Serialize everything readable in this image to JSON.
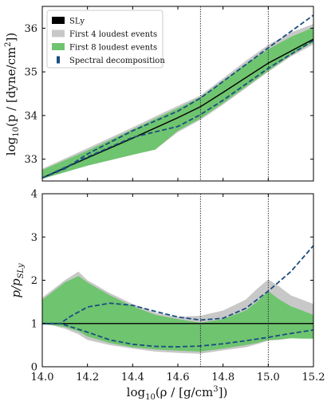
{
  "colors": {
    "sly": "#000000",
    "band4": "#c8c8c8",
    "band8": "#6fc46f",
    "spectral": "#1a4d80",
    "vline": "#222222"
  },
  "chart_data": [
    {
      "type": "area",
      "panel": "top",
      "ylabel": "log10(p / [dyne/cm²])",
      "ylabel_parts": {
        "prefix": "log",
        "sub": "10",
        "mid": "(p / [dyne/cm",
        "sup": "2",
        "suffix": "])"
      },
      "xlim": [
        14.0,
        15.2
      ],
      "ylim": [
        32.5,
        36.5
      ],
      "yticks": [
        33,
        34,
        35,
        36
      ],
      "ytick_labels": [
        "33",
        "34",
        "35",
        "36"
      ],
      "vlines": [
        14.7,
        15.0
      ],
      "legend": {
        "position": "top-left",
        "entries": [
          {
            "label": "SLy",
            "series": "sly"
          },
          {
            "label": "First 4 loudest events",
            "series": "band4"
          },
          {
            "label": "First 8 loudest events",
            "series": "band8"
          },
          {
            "label": "Spectral decomposition",
            "series": "spectral"
          }
        ]
      },
      "series": [
        {
          "key": "sly",
          "name": "SLy",
          "style": "line",
          "x": [
            14.0,
            14.2,
            14.4,
            14.6,
            14.7,
            14.8,
            15.0,
            15.2
          ],
          "y": [
            32.57,
            33.03,
            33.48,
            33.95,
            34.2,
            34.53,
            35.2,
            35.75
          ]
        },
        {
          "key": "band4",
          "name": "First 4 loudest events",
          "style": "band",
          "x": [
            14.0,
            14.2,
            14.4,
            14.5,
            14.6,
            14.7,
            14.8,
            14.9,
            15.0,
            15.1,
            15.2
          ],
          "upper": [
            32.78,
            33.25,
            33.73,
            33.98,
            34.22,
            34.46,
            34.85,
            35.25,
            35.62,
            35.9,
            36.1
          ],
          "lower": [
            32.55,
            32.85,
            33.1,
            33.22,
            33.62,
            33.9,
            34.25,
            34.62,
            35.0,
            35.35,
            35.63
          ]
        },
        {
          "key": "band8",
          "name": "First 8 loudest events",
          "style": "band",
          "x": [
            14.0,
            14.2,
            14.4,
            14.5,
            14.6,
            14.7,
            14.8,
            14.9,
            15.0,
            15.1,
            15.2
          ],
          "upper": [
            32.75,
            33.2,
            33.68,
            33.93,
            34.17,
            34.42,
            34.8,
            35.18,
            35.52,
            35.8,
            36.02
          ],
          "lower": [
            32.55,
            32.85,
            33.1,
            33.22,
            33.65,
            33.93,
            34.28,
            34.65,
            35.02,
            35.38,
            35.68
          ]
        },
        {
          "key": "spectral_upper",
          "name": "Spectral decomposition",
          "style": "dashed",
          "x": [
            14.0,
            14.1,
            14.2,
            14.4,
            14.6,
            14.7,
            14.8,
            15.0,
            15.2
          ],
          "y": [
            32.57,
            32.78,
            33.12,
            33.65,
            34.1,
            34.4,
            34.78,
            35.55,
            36.3
          ]
        },
        {
          "key": "spectral_lower",
          "name": "Spectral decomposition",
          "style": "dashed",
          "x": [
            14.0,
            14.2,
            14.4,
            14.6,
            14.7,
            14.8,
            15.0,
            15.2
          ],
          "y": [
            32.57,
            33.05,
            33.5,
            33.75,
            34.02,
            34.35,
            35.08,
            35.72
          ]
        }
      ]
    },
    {
      "type": "area",
      "panel": "bottom",
      "xlabel": "log10(ρ / [g/cm³])",
      "xlabel_parts": {
        "prefix": "log",
        "sub": "10",
        "mid": "(ρ / [g/cm",
        "sup": "3",
        "suffix": "])"
      },
      "ylabel": "p/pSLy",
      "ylabel_parts": {
        "main": "p/p",
        "sub": "SLy"
      },
      "xlim": [
        14.0,
        15.2
      ],
      "ylim": [
        0,
        4
      ],
      "xticks": [
        14.0,
        14.2,
        14.4,
        14.6,
        14.8,
        15.0,
        15.2
      ],
      "xtick_labels": [
        "14.0",
        "14.2",
        "14.4",
        "14.6",
        "14.8",
        "15.0",
        "15.2"
      ],
      "yticks": [
        0,
        1,
        2,
        3,
        4
      ],
      "ytick_labels": [
        "0",
        "1",
        "2",
        "3",
        "4"
      ],
      "vlines": [
        14.7,
        15.0
      ],
      "series": [
        {
          "key": "sly",
          "name": "SLy",
          "style": "line",
          "x": [
            14.0,
            15.2
          ],
          "y": [
            1.0,
            1.0
          ]
        },
        {
          "key": "band4",
          "name": "First 4 loudest events",
          "style": "band",
          "x": [
            14.0,
            14.05,
            14.1,
            14.16,
            14.2,
            14.3,
            14.4,
            14.5,
            14.6,
            14.7,
            14.8,
            14.9,
            14.95,
            15.0,
            15.05,
            15.1,
            15.15,
            15.2
          ],
          "upper": [
            1.6,
            1.8,
            2.0,
            2.2,
            2.0,
            1.7,
            1.45,
            1.25,
            1.15,
            1.18,
            1.3,
            1.55,
            1.8,
            2.02,
            1.85,
            1.65,
            1.55,
            1.45
          ],
          "lower": [
            0.98,
            0.95,
            0.88,
            0.75,
            0.62,
            0.5,
            0.42,
            0.35,
            0.32,
            0.3,
            0.38,
            0.45,
            0.52,
            0.6,
            0.62,
            0.66,
            0.68,
            0.7
          ]
        },
        {
          "key": "band8",
          "name": "First 8 loudest events",
          "style": "band",
          "x": [
            14.0,
            14.05,
            14.1,
            14.16,
            14.2,
            14.3,
            14.4,
            14.5,
            14.6,
            14.7,
            14.8,
            14.9,
            14.95,
            15.0,
            15.05,
            15.1,
            15.15,
            15.2
          ],
          "upper": [
            1.55,
            1.75,
            1.95,
            2.1,
            1.95,
            1.65,
            1.4,
            1.2,
            1.1,
            1.02,
            1.1,
            1.3,
            1.5,
            1.75,
            1.55,
            1.4,
            1.3,
            1.2
          ],
          "lower": [
            0.98,
            0.96,
            0.92,
            0.82,
            0.7,
            0.55,
            0.45,
            0.4,
            0.37,
            0.35,
            0.42,
            0.5,
            0.55,
            0.62,
            0.63,
            0.66,
            0.65,
            0.65
          ]
        },
        {
          "key": "spectral_upper",
          "name": "Spectral decomposition",
          "style": "dashed",
          "x": [
            14.0,
            14.08,
            14.12,
            14.2,
            14.3,
            14.4,
            14.5,
            14.6,
            14.7,
            14.8,
            14.9,
            15.0,
            15.1,
            15.2
          ],
          "y": [
            1.0,
            1.0,
            1.15,
            1.38,
            1.47,
            1.42,
            1.28,
            1.15,
            1.08,
            1.12,
            1.35,
            1.75,
            2.2,
            2.8
          ]
        },
        {
          "key": "spectral_lower",
          "name": "Spectral decomposition",
          "style": "dashed",
          "x": [
            14.0,
            14.08,
            14.2,
            14.3,
            14.4,
            14.5,
            14.6,
            14.7,
            14.8,
            14.9,
            15.0,
            15.1,
            15.2
          ],
          "y": [
            1.0,
            1.0,
            0.8,
            0.62,
            0.52,
            0.47,
            0.46,
            0.48,
            0.53,
            0.6,
            0.68,
            0.77,
            0.85
          ]
        }
      ]
    }
  ]
}
